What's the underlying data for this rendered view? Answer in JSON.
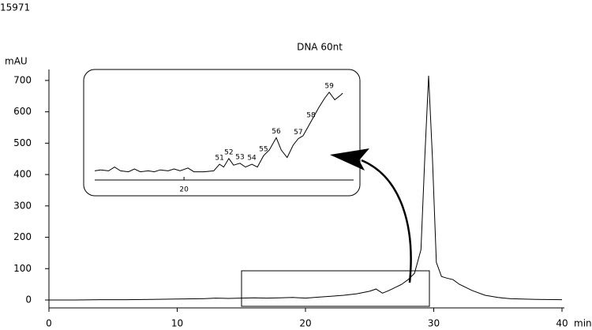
{
  "label": "15971",
  "chart_data": [
    {
      "type": "line",
      "title": "DNA 60nt",
      "y_label": "mAU",
      "x_label": "min",
      "color": "#000000",
      "x": [
        0,
        2,
        4,
        6,
        8,
        10,
        12,
        13,
        14,
        15,
        16,
        17,
        18,
        19,
        20,
        21,
        22,
        23,
        24,
        25,
        25.5,
        26,
        26.5,
        27,
        27.5,
        28,
        28.5,
        29,
        29.3,
        29.6,
        29.9,
        30.2,
        30.6,
        31,
        31.5,
        32,
        33,
        34,
        35,
        36,
        38,
        40
      ],
      "values": [
        0,
        0,
        1,
        1,
        2,
        3,
        4,
        6,
        5,
        6,
        7,
        6,
        7,
        8,
        6,
        9,
        12,
        15,
        20,
        28,
        35,
        22,
        30,
        40,
        50,
        65,
        85,
        160,
        450,
        715,
        450,
        120,
        75,
        70,
        65,
        50,
        30,
        15,
        8,
        4,
        2,
        1
      ],
      "xlim": [
        0,
        40
      ],
      "xticks": [
        0,
        10,
        20,
        30,
        40
      ],
      "ylim": [
        0,
        735
      ],
      "yticks": [
        0,
        100,
        200,
        300,
        400,
        500,
        600,
        700
      ]
    },
    {
      "type": "line",
      "color": "#000000",
      "x": [
        15.5,
        15.8,
        16.2,
        16.5,
        16.8,
        17.2,
        17.5,
        17.8,
        18.2,
        18.5,
        18.8,
        19.2,
        19.5,
        19.8,
        20.2,
        20.5,
        21,
        21.5,
        21.79,
        22.0,
        22.26,
        22.5,
        22.82,
        23.1,
        23.42,
        23.7,
        24.01,
        24.3,
        24.65,
        24.9,
        25.2,
        25.5,
        25.76,
        26.0,
        26.4,
        26.8,
        27.1,
        27.32,
        27.6,
        27.9,
        28.0
      ],
      "values": [
        8,
        9,
        8,
        12,
        8,
        7,
        10,
        7,
        8,
        7,
        9,
        8,
        10,
        8,
        11,
        7,
        7,
        8,
        15,
        12,
        21,
        14,
        16,
        12,
        15,
        12,
        24,
        30,
        43,
        30,
        22,
        35,
        42,
        45,
        60,
        75,
        85,
        91,
        83,
        88,
        90
      ],
      "xlim": [
        15.5,
        28.55
      ],
      "xticks": [
        20
      ],
      "ylim": [
        0,
        100
      ],
      "peak_labels": [
        "51",
        "52",
        "53",
        "54",
        "55",
        "56",
        "57",
        "58",
        "59"
      ],
      "peak_x": [
        21.79,
        22.26,
        22.82,
        23.42,
        24.01,
        24.65,
        25.76,
        26.4,
        27.32
      ],
      "peak_y": [
        15,
        21,
        16,
        15,
        24,
        43,
        42,
        60,
        91
      ]
    }
  ]
}
